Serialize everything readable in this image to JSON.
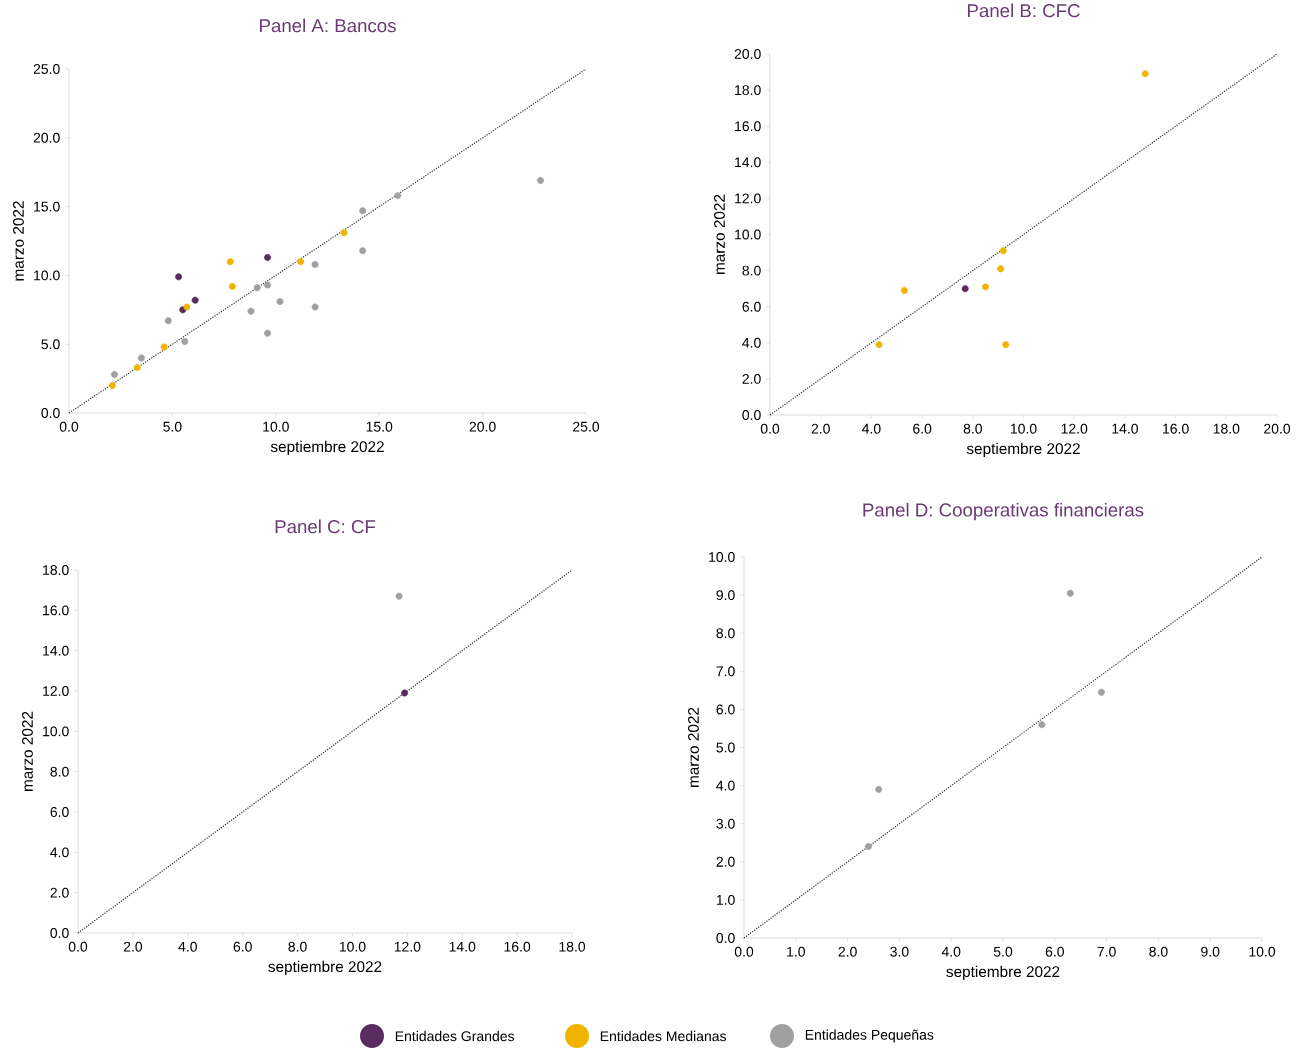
{
  "chart_data": [
    {
      "type": "scatter",
      "title": "Panel A: Bancos",
      "xlabel": "septiembre 2022",
      "ylabel": "marzo 2022",
      "marker": "circle",
      "legend": "bottom",
      "xlim": [
        0,
        25
      ],
      "ylim": [
        0,
        25
      ],
      "xticks": [
        {
          "value": 0,
          "label": "0.0"
        },
        {
          "value": 5,
          "label": "5.0"
        },
        {
          "value": 10,
          "label": "10.0"
        },
        {
          "value": 15,
          "label": "15.0"
        },
        {
          "value": 20,
          "label": "20.0"
        },
        {
          "value": 25,
          "label": "25.0"
        }
      ],
      "yticks": [
        {
          "value": 0,
          "label": "0.0"
        },
        {
          "value": 5,
          "label": "5.0"
        },
        {
          "value": 10,
          "label": "10.0"
        },
        {
          "value": 15,
          "label": "15.0"
        },
        {
          "value": 20,
          "label": "20.0"
        },
        {
          "value": 25,
          "label": "25.0"
        }
      ],
      "series": [
        {
          "name": "Entidades Grandes",
          "color": "#582c5e",
          "x": [
            5.3,
            5.5,
            6.1,
            9.6
          ],
          "values": [
            9.9,
            7.5,
            8.2,
            11.3
          ]
        },
        {
          "name": "Entidades Medianas",
          "color": "#f0b400",
          "x": [
            2.1,
            3.3,
            4.6,
            5.7,
            7.8,
            7.9,
            11.2,
            13.3
          ],
          "values": [
            2.0,
            3.3,
            4.8,
            7.7,
            11.0,
            9.2,
            11.0,
            13.1
          ]
        },
        {
          "name": "Entidades Pequeñas",
          "color": "#a0a0a0",
          "x": [
            2.2,
            3.5,
            4.8,
            5.6,
            8.8,
            9.1,
            9.6,
            9.6,
            10.2,
            11.9,
            11.9,
            14.2,
            14.2,
            15.9,
            22.8
          ],
          "values": [
            2.8,
            4.0,
            6.7,
            5.2,
            7.4,
            9.1,
            9.3,
            5.8,
            8.1,
            10.8,
            7.7,
            11.8,
            14.7,
            15.8,
            16.9
          ]
        },
        {
          "type": "line",
          "line_style": "dotted",
          "marker": "none",
          "color": "#333333",
          "x": [
            0,
            25
          ],
          "values": [
            0,
            25
          ]
        }
      ]
    },
    {
      "type": "scatter",
      "title": "Panel B: CFC",
      "xlabel": "septiembre 2022",
      "ylabel": "marzo 2022",
      "marker": "circle",
      "xlim": [
        0,
        20
      ],
      "ylim": [
        0,
        20
      ],
      "xticks": [
        {
          "value": 0,
          "label": "0.0"
        },
        {
          "value": 2,
          "label": "2.0"
        },
        {
          "value": 4,
          "label": "4.0"
        },
        {
          "value": 6,
          "label": "6.0"
        },
        {
          "value": 8,
          "label": "8.0"
        },
        {
          "value": 10,
          "label": "10.0"
        },
        {
          "value": 12,
          "label": "12.0"
        },
        {
          "value": 14,
          "label": "14.0"
        },
        {
          "value": 16,
          "label": "16.0"
        },
        {
          "value": 18,
          "label": "18.0"
        },
        {
          "value": 20,
          "label": "20.0"
        }
      ],
      "yticks": [
        {
          "value": 0,
          "label": "0.0"
        },
        {
          "value": 2,
          "label": "2.0"
        },
        {
          "value": 4,
          "label": "4.0"
        },
        {
          "value": 6,
          "label": "6.0"
        },
        {
          "value": 8,
          "label": "8.0"
        },
        {
          "value": 10,
          "label": "10.0"
        },
        {
          "value": 12,
          "label": "12.0"
        },
        {
          "value": 14,
          "label": "14.0"
        },
        {
          "value": 16,
          "label": "16.0"
        },
        {
          "value": 18,
          "label": "18.0"
        },
        {
          "value": 20,
          "label": "20.0"
        }
      ],
      "series": [
        {
          "color": "#582c5e",
          "x": [
            7.7
          ],
          "values": [
            7.0
          ]
        },
        {
          "color": "#f0b400",
          "x": [
            14.8,
            9.2,
            9.1,
            8.5,
            5.3,
            4.3,
            9.3
          ],
          "values": [
            18.9,
            9.1,
            8.1,
            7.1,
            6.9,
            3.9,
            3.9
          ]
        },
        {
          "type": "line",
          "line_style": "dotted",
          "marker": "none",
          "color": "#333333",
          "x": [
            0,
            20
          ],
          "values": [
            0,
            20
          ]
        }
      ]
    },
    {
      "type": "scatter",
      "title": "Panel C: CF",
      "xlabel": "septiembre 2022",
      "ylabel": "marzo 2022",
      "marker": "circle",
      "xlim": [
        0,
        18
      ],
      "ylim": [
        0,
        18
      ],
      "xticks": [
        {
          "value": 0,
          "label": "0.0"
        },
        {
          "value": 2,
          "label": "2.0"
        },
        {
          "value": 4,
          "label": "4.0"
        },
        {
          "value": 6,
          "label": "6.0"
        },
        {
          "value": 8,
          "label": "8.0"
        },
        {
          "value": 10,
          "label": "10.0"
        },
        {
          "value": 12,
          "label": "12.0"
        },
        {
          "value": 14,
          "label": "14.0"
        },
        {
          "value": 16,
          "label": "16.0"
        },
        {
          "value": 18,
          "label": "18.0"
        }
      ],
      "yticks": [
        {
          "value": 0,
          "label": "0.0"
        },
        {
          "value": 2,
          "label": "2.0"
        },
        {
          "value": 4,
          "label": "4.0"
        },
        {
          "value": 6,
          "label": "6.0"
        },
        {
          "value": 8,
          "label": "8.0"
        },
        {
          "value": 10,
          "label": "10.0"
        },
        {
          "value": 12,
          "label": "12.0"
        },
        {
          "value": 14,
          "label": "14.0"
        },
        {
          "value": 16,
          "label": "16.0"
        },
        {
          "value": 18,
          "label": "18.0"
        }
      ],
      "series": [
        {
          "color": "#582c5e",
          "x": [
            11.9
          ],
          "values": [
            11.9
          ]
        },
        {
          "color": "#a0a0a0",
          "x": [
            11.7
          ],
          "values": [
            16.7
          ]
        },
        {
          "type": "line",
          "line_style": "dotted",
          "marker": "none",
          "color": "#333333",
          "x": [
            0,
            18
          ],
          "values": [
            0,
            18
          ]
        }
      ]
    },
    {
      "type": "scatter",
      "title": "Panel D: Cooperativas financieras",
      "xlabel": "septiembre 2022",
      "ylabel": "marzo 2022",
      "marker": "circle",
      "xlim": [
        0,
        10
      ],
      "ylim": [
        0,
        10
      ],
      "xticks": [
        {
          "value": 0,
          "label": "0.0"
        },
        {
          "value": 1,
          "label": "1.0"
        },
        {
          "value": 2,
          "label": "2.0"
        },
        {
          "value": 3,
          "label": "3.0"
        },
        {
          "value": 4,
          "label": "4.0"
        },
        {
          "value": 5,
          "label": "5.0"
        },
        {
          "value": 6,
          "label": "6.0"
        },
        {
          "value": 7,
          "label": "7.0"
        },
        {
          "value": 8,
          "label": "8.0"
        },
        {
          "value": 9,
          "label": "9.0"
        },
        {
          "value": 10,
          "label": "10.0"
        }
      ],
      "yticks": [
        {
          "value": 0,
          "label": "0.0"
        },
        {
          "value": 1,
          "label": "1.0"
        },
        {
          "value": 2,
          "label": "2.0"
        },
        {
          "value": 3,
          "label": "3.0"
        },
        {
          "value": 4,
          "label": "4.0"
        },
        {
          "value": 5,
          "label": "5.0"
        },
        {
          "value": 6,
          "label": "6.0"
        },
        {
          "value": 7,
          "label": "7.0"
        },
        {
          "value": 8,
          "label": "8.0"
        },
        {
          "value": 9,
          "label": "9.0"
        },
        {
          "value": 10,
          "label": "10.0"
        }
      ],
      "series": [
        {
          "color": "#a0a0a0",
          "x": [
            2.4,
            2.6,
            5.75,
            6.3,
            6.9
          ],
          "values": [
            2.4,
            3.9,
            5.6,
            9.05,
            6.45
          ]
        },
        {
          "type": "line",
          "line_style": "dotted",
          "marker": "none",
          "color": "#333333",
          "x": [
            0,
            10
          ],
          "values": [
            0,
            10
          ]
        }
      ]
    }
  ]
}
